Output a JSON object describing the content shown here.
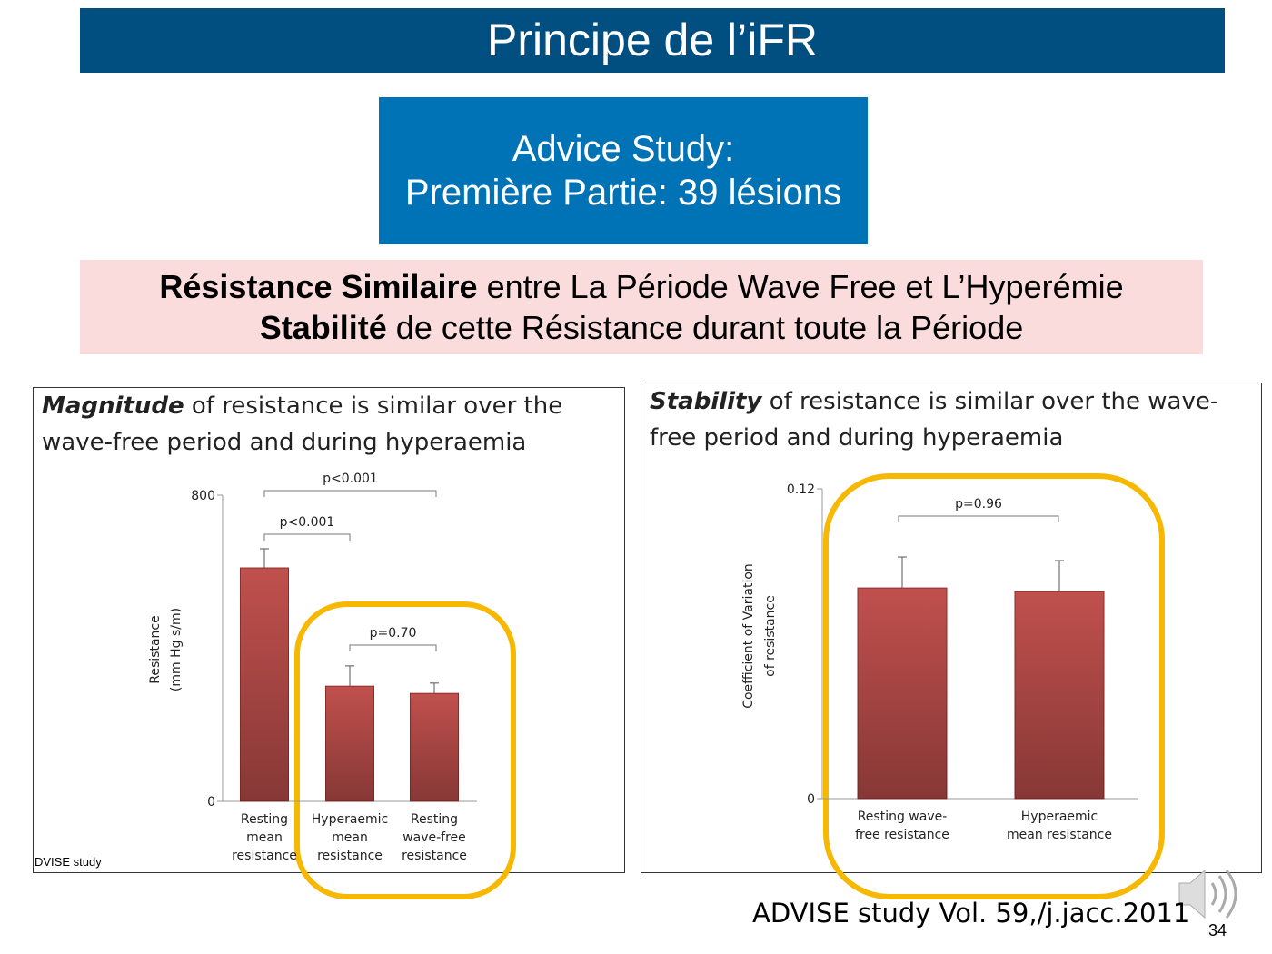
{
  "header": {
    "title": "Principe  de l’iFR"
  },
  "study_box": {
    "lines": [
      "Advice Study:",
      "Première Partie: 39 lésions"
    ]
  },
  "highlight": {
    "lines": [
      {
        "bold": "Résistance Similaire",
        "text": "entre La Période Wave Free et L’Hyperémie"
      },
      {
        "bold": "Stabilité",
        "text": "de cette Résistance  durant toute la Période"
      }
    ]
  },
  "chart_data": [
    {
      "type": "bar",
      "title": {
        "emphasis": "Magnitude",
        "rest": "of resistance is similar over the wave-free period and during hyperaemia"
      },
      "categories": [
        "Resting mean resistance",
        "Hyperaemic mean resistance",
        "Resting wave-free resistance"
      ],
      "values": [
        610,
        301,
        282
      ],
      "errors": [
        50,
        53,
        27
      ],
      "color": "#c0504d",
      "ylabel": [
        "Resistance",
        "(mm Hg s/m)"
      ],
      "ylim": [
        0,
        800
      ],
      "yticks": [
        0,
        800
      ],
      "annotations": [
        "p<0.001",
        "p<0.001",
        "p=0.70"
      ],
      "footnote": "DVISE study"
    },
    {
      "type": "bar",
      "title": {
        "emphasis": "Stability",
        "rest": "of resistance is similar over the wave-free period and during hyperaemia"
      },
      "categories": [
        "Resting wave-free resistance",
        "Hyperaemic mean resistance"
      ],
      "values": [
        0.0816,
        0.0802
      ],
      "errors": [
        0.012,
        0.012
      ],
      "color": "#c0504d",
      "ylabel": [
        "Coefficient of Variation",
        "of resistance"
      ],
      "ylim": [
        0,
        0.12
      ],
      "yticks": [
        0,
        0.12
      ],
      "annotations": [
        "p=0.96"
      ]
    }
  ],
  "citation": "ADVISE study Vol. 59,/j.jacc.2011",
  "page_number": "34"
}
